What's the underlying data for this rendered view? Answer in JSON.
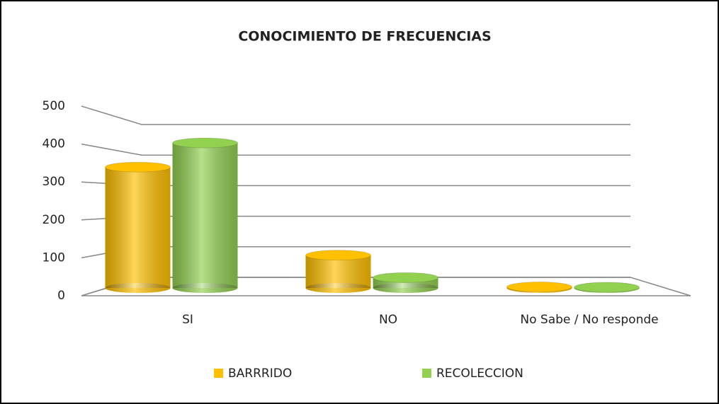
{
  "chart_data": {
    "type": "bar3d",
    "title": "CONOCIMIENTO DE FRECUENCIAS",
    "categories": [
      "SI",
      "NO",
      "No Sabe / No responde"
    ],
    "series": [
      {
        "name": "BARRRIDO",
        "color": "#ffc000",
        "values": [
          350,
          95,
          3
        ]
      },
      {
        "name": "RECOLECCION",
        "color": "#92d050",
        "values": [
          420,
          30,
          2
        ]
      }
    ],
    "ylim": [
      0,
      500
    ],
    "yticks": [
      0,
      100,
      200,
      300,
      400,
      500
    ],
    "grid": true,
    "legend": "bottom"
  }
}
